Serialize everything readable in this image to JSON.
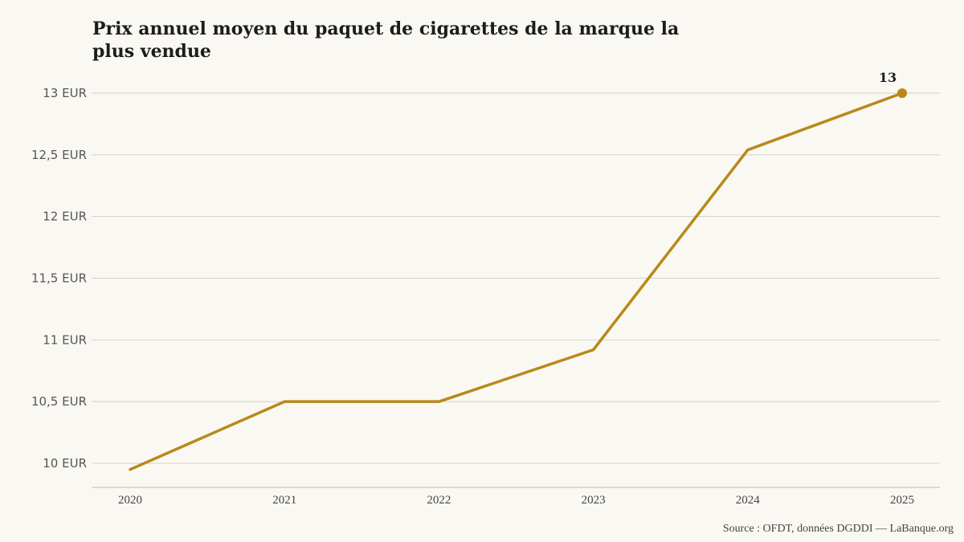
{
  "chart_data": {
    "type": "line",
    "title": "Prix annuel moyen du paquet de cigarettes de la marque la plus vendue",
    "x": [
      "2020",
      "2021",
      "2022",
      "2023",
      "2024",
      "2025"
    ],
    "series": [
      {
        "values": [
          9.95,
          10.5,
          10.5,
          10.92,
          12.54,
          13.0
        ],
        "color": "#b8891a"
      }
    ],
    "yticks": [
      {
        "value": 10,
        "label": "10 EUR"
      },
      {
        "value": 10.5,
        "label": "10,5 EUR"
      },
      {
        "value": 11,
        "label": "11 EUR"
      },
      {
        "value": 11.5,
        "label": "11,5 EUR"
      },
      {
        "value": 12,
        "label": "12 EUR"
      },
      {
        "value": 12.5,
        "label": "12,5 EUR"
      },
      {
        "value": 13,
        "label": "13 EUR"
      }
    ],
    "ylim": [
      9.9,
      13.2
    ],
    "grid": true,
    "annotations": [
      {
        "x": "2025",
        "label": "13"
      }
    ],
    "xlabel": "",
    "ylabel": ""
  },
  "source": "Source : OFDT, données DGDDI — LaBanque.org",
  "colors": {
    "background": "#faf8f2",
    "line": "#b8891a",
    "grid": "#d6d2c8",
    "axis": "#bdb9b0"
  }
}
